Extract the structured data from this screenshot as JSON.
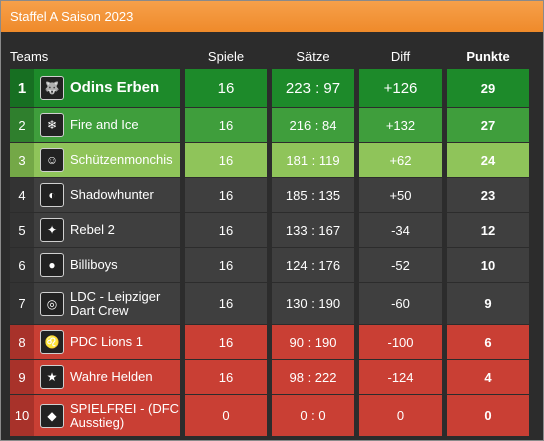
{
  "title": "Staffel A Saison 2023",
  "headers": {
    "teams": "Teams",
    "spiele": "Spiele",
    "saetze": "Sätze",
    "diff": "Diff",
    "punkte": "Punkte"
  },
  "colors": {
    "champion": "#1d8a2a",
    "championNum": "#176f22",
    "second": "#3f9e3c",
    "secondNum": "#2f7f2d",
    "third": "#8fc45a",
    "thirdNum": "#74a847",
    "normal": "#3f3f3f",
    "normalNum": "#333333",
    "relegation": "#c93f34",
    "relegationNum": "#a8322a"
  },
  "rows": [
    {
      "rank": "1",
      "team": "Odins Erben",
      "spiele": "16",
      "saetze": "223 : 97",
      "diff": "+126",
      "punkte": "29",
      "zone": "champion",
      "icon": "wolf-logo-icon",
      "glyph": "🐺"
    },
    {
      "rank": "2",
      "team": "Fire and Ice",
      "spiele": "16",
      "saetze": "216 : 84",
      "diff": "+132",
      "punkte": "27",
      "zone": "second",
      "icon": "fire-ice-logo-icon",
      "glyph": "❄"
    },
    {
      "rank": "3",
      "team": "Schützenmonchis",
      "spiele": "16",
      "saetze": "181 : 119",
      "diff": "+62",
      "punkte": "24",
      "zone": "third",
      "icon": "monk-logo-icon",
      "glyph": "☺"
    },
    {
      "rank": "4",
      "team": "Shadowhunter",
      "spiele": "16",
      "saetze": "185 : 135",
      "diff": "+50",
      "punkte": "23",
      "zone": "normal",
      "icon": "shadowhunter-logo-icon",
      "glyph": "◐"
    },
    {
      "rank": "5",
      "team": "Rebel 2",
      "spiele": "16",
      "saetze": "133 : 167",
      "diff": "-34",
      "punkte": "12",
      "zone": "normal",
      "icon": "rebel-logo-icon",
      "glyph": "✦"
    },
    {
      "rank": "6",
      "team": "Billiboys",
      "spiele": "16",
      "saetze": "124 : 176",
      "diff": "-52",
      "punkte": "10",
      "zone": "normal",
      "icon": "billiboys-logo-icon",
      "glyph": "●"
    },
    {
      "rank": "7",
      "team": "LDC - Leipziger Dart Crew",
      "spiele": "16",
      "saetze": "130 : 190",
      "diff": "-60",
      "punkte": "9",
      "zone": "normal",
      "icon": "ldc-logo-icon",
      "glyph": "◎"
    },
    {
      "rank": "8",
      "team": "PDC Lions 1",
      "spiele": "16",
      "saetze": "90 : 190",
      "diff": "-100",
      "punkte": "6",
      "zone": "relegation",
      "icon": "lion-logo-icon",
      "glyph": "♌"
    },
    {
      "rank": "9",
      "team": "Wahre Helden",
      "spiele": "16",
      "saetze": "98 : 222",
      "diff": "-124",
      "punkte": "4",
      "zone": "relegation",
      "icon": "helden-logo-icon",
      "glyph": "★"
    },
    {
      "rank": "10",
      "team": "SPIELFREI - (DFC Ausstieg)",
      "spiele": "0",
      "saetze": "0 : 0",
      "diff": "0",
      "punkte": "0",
      "zone": "relegation",
      "icon": "dfc-logo-icon",
      "glyph": "◆"
    }
  ]
}
